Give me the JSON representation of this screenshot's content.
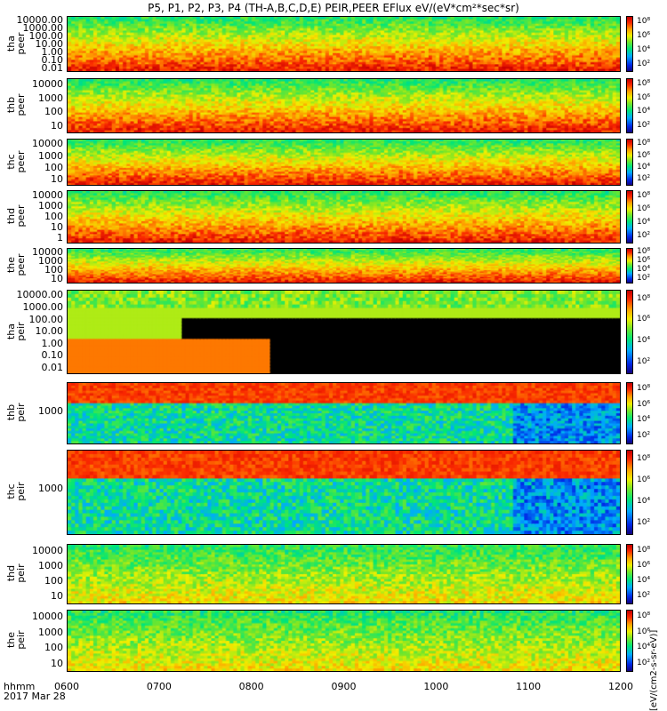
{
  "chart_data": {
    "type": "heatmap",
    "title": "P5, P1, P2, P3, P4 (TH-A,B,C,D,E) PEIR,PEER EFlux eV/(eV*cm²*sec*sr)",
    "xlabel": "hhmm",
    "date_label": "2017 Mar 28",
    "x_ticks": [
      "0600",
      "0700",
      "0800",
      "0900",
      "1000",
      "1100",
      "1200"
    ],
    "colorbar_unit": "[eV/(cm2-s-sr-eV)]",
    "colorbar_ticks": [
      "10²",
      "10⁴",
      "10⁶",
      "10⁸"
    ],
    "panels": [
      {
        "probe": "tha",
        "species": "peer",
        "yticks": [
          "10000.00",
          "1000.00",
          "100.00",
          "10.00",
          "1.00",
          "0.10",
          "0.01"
        ],
        "yscale": "log",
        "ylim": [
          0.01,
          20000
        ]
      },
      {
        "probe": "thb",
        "species": "peer",
        "yticks": [
          "10000",
          "1000",
          "100",
          "10"
        ],
        "yscale": "log",
        "ylim": [
          7,
          20000
        ]
      },
      {
        "probe": "thc",
        "species": "peer",
        "yticks": [
          "10000",
          "1000",
          "100",
          "10"
        ],
        "yscale": "log",
        "ylim": [
          7,
          20000
        ]
      },
      {
        "probe": "thd",
        "species": "peer",
        "yticks": [
          "10000",
          "1000",
          "100",
          "10",
          "1"
        ],
        "yscale": "log",
        "ylim": [
          1,
          20000
        ]
      },
      {
        "probe": "the",
        "species": "peer",
        "yticks": [
          "10000",
          "1000",
          "100",
          "10"
        ],
        "yscale": "log",
        "ylim": [
          7,
          20000
        ]
      },
      {
        "probe": "tha",
        "species": "peir",
        "yticks": [
          "10000.00",
          "1000.00",
          "100.00",
          "10.00",
          "1.00",
          "0.10",
          "0.01"
        ],
        "yscale": "log",
        "ylim": [
          0.01,
          20000
        ]
      },
      {
        "probe": "thb",
        "species": "peir",
        "yticks": [
          "1000"
        ],
        "yscale": "log",
        "ylim": [
          200,
          15000
        ]
      },
      {
        "probe": "thc",
        "species": "peir",
        "yticks": [
          "1000"
        ],
        "yscale": "log",
        "ylim": [
          200,
          15000
        ]
      },
      {
        "probe": "thd",
        "species": "peir",
        "yticks": [
          "10000",
          "1000",
          "100",
          "10"
        ],
        "yscale": "log",
        "ylim": [
          7,
          20000
        ]
      },
      {
        "probe": "the",
        "species": "peir",
        "yticks": [
          "10000",
          "1000",
          "100",
          "10"
        ],
        "yscale": "log",
        "ylim": [
          7,
          20000
        ]
      }
    ]
  }
}
